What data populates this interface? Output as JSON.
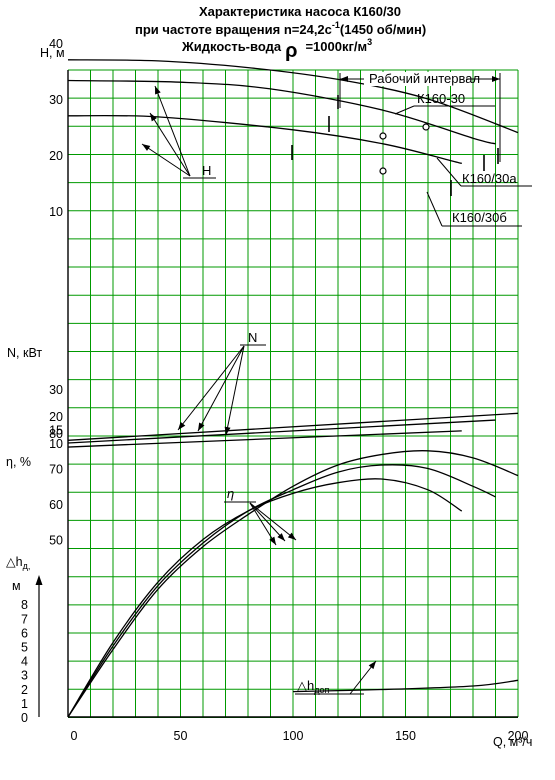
{
  "title_lines": [
    "Характеристика насоса К160/30",
    "при частоте вращения n=24,2c",
    "Жидкость-вода",
    "=1000кг/м"
  ],
  "title_sup": [
    "-1",
    "3"
  ],
  "title_after_sup": "(1450 об/мин)",
  "title_rho": "ρ",
  "colors": {
    "grid": "#009900",
    "curve": "#000000"
  },
  "chart_data": {
    "type": "line",
    "x_axis": {
      "label": "Q, м³/ч",
      "range": [
        0,
        200
      ],
      "ticks": [
        "0",
        "50",
        "100",
        "150",
        "200"
      ]
    },
    "axes": {
      "H": {
        "label": "H, м",
        "ticks": [
          "10",
          "20",
          "30",
          "40"
        ]
      },
      "N": {
        "label": "N, кВт",
        "ticks": [
          "10",
          "15",
          "20",
          "30"
        ]
      },
      "eta": {
        "label": "η, %",
        "ticks": [
          "50",
          "60",
          "70",
          "80"
        ]
      },
      "dh": {
        "label_main": "△h",
        "label_sub": "д,",
        "label_unit": "м",
        "ticks": [
          "0",
          "1",
          "2",
          "3",
          "4",
          "5",
          "6",
          "7",
          "8"
        ]
      }
    },
    "work_interval_label": "Рабочий интервал",
    "labels": {
      "H": "H",
      "N": "N",
      "eta": "η",
      "dh_main": "△h",
      "dh_sub": "доп",
      "k": "К160-30",
      "ka": "К160/30а",
      "kb": "К160/30б"
    },
    "series": [
      {
        "name": "К160-30",
        "axis": "H",
        "x": [
          0,
          40,
          80,
          120,
          160,
          200
        ],
        "y": [
          37,
          36.8,
          35.6,
          33.5,
          30,
          24
        ]
      },
      {
        "name": "К160/30а",
        "axis": "H",
        "x": [
          0,
          50,
          90,
          140,
          180,
          190
        ],
        "y": [
          33.3,
          33,
          31.8,
          28,
          23,
          22
        ]
      },
      {
        "name": "К160/30б",
        "axis": "H",
        "x": [
          0,
          40,
          100,
          140,
          170,
          175
        ],
        "y": [
          27,
          26.8,
          24.5,
          22,
          19,
          18.5
        ]
      },
      {
        "name": "N",
        "axis": "N",
        "x": [
          0,
          200
        ],
        "y": [
          11,
          21
        ]
      },
      {
        "name": "N",
        "axis": "N",
        "x": [
          0,
          190
        ],
        "y": [
          10,
          18.5
        ]
      },
      {
        "name": "N",
        "axis": "N",
        "x": [
          0,
          175
        ],
        "y": [
          8.5,
          14.5
        ]
      },
      {
        "name": "η",
        "axis": "eta",
        "x": [
          0,
          20,
          40,
          60,
          80,
          100,
          120,
          140,
          160,
          180,
          200
        ],
        "y": [
          0,
          19,
          36,
          48,
          57,
          65,
          71,
          74,
          75,
          73,
          68
        ]
      },
      {
        "name": "η",
        "axis": "eta",
        "x": [
          0,
          20,
          40,
          60,
          80,
          100,
          120,
          140,
          160,
          180,
          190
        ],
        "y": [
          0,
          20,
          37,
          49,
          58,
          64,
          69,
          71,
          70,
          65,
          62
        ]
      },
      {
        "name": "η",
        "axis": "eta",
        "x": [
          0,
          20,
          40,
          60,
          80,
          100,
          120,
          140,
          160,
          175
        ],
        "y": [
          0,
          21,
          38,
          50,
          58,
          63,
          66,
          67,
          64,
          58
        ]
      },
      {
        "name": "△h доп",
        "axis": "dh",
        "x": [
          100,
          140,
          180,
          200
        ],
        "y": [
          1.8,
          1.95,
          2.2,
          2.6
        ]
      }
    ]
  }
}
